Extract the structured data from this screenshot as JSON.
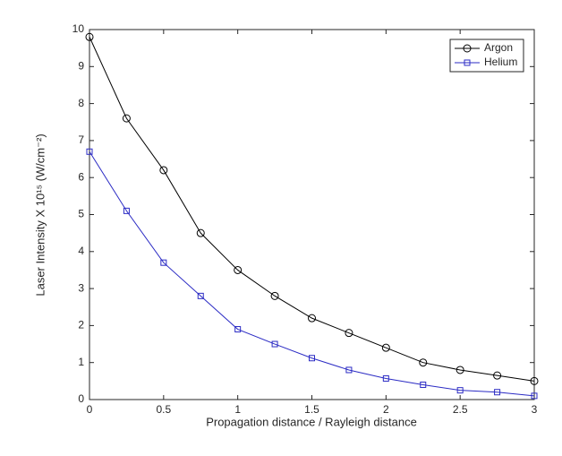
{
  "chart_data": {
    "type": "line",
    "xlabel": "Propagation distance / Rayleigh distance",
    "ylabel": "Laser Intensity X 10¹⁵ (W/cm⁻²)",
    "x": [
      0,
      0.25,
      0.5,
      0.75,
      1,
      1.25,
      1.5,
      1.75,
      2,
      2.25,
      2.5,
      2.75,
      3
    ],
    "series": [
      {
        "name": "Argon",
        "color": "#000000",
        "marker": "circle",
        "values": [
          9.8,
          7.6,
          6.2,
          4.5,
          3.5,
          2.8,
          2.2,
          1.8,
          1.4,
          1.0,
          0.8,
          0.65,
          0.5
        ]
      },
      {
        "name": "Helium",
        "color": "#2b2bc4",
        "marker": "square",
        "values": [
          6.7,
          5.1,
          3.7,
          2.8,
          1.9,
          1.5,
          1.12,
          0.8,
          0.57,
          0.4,
          0.25,
          0.2,
          0.1
        ]
      }
    ],
    "xlim": [
      0,
      3
    ],
    "xticks": [
      0,
      0.5,
      1,
      1.5,
      2,
      2.5,
      3
    ],
    "ylim": [
      0,
      10
    ],
    "yticks": [
      0,
      1,
      2,
      3,
      4,
      5,
      6,
      7,
      8,
      9,
      10
    ],
    "grid": false,
    "legend": "northeast"
  }
}
